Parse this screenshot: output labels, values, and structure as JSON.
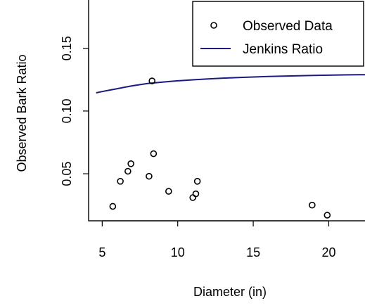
{
  "chart_data": {
    "type": "scatter",
    "title": "",
    "xlabel": "Diameter (in)",
    "ylabel": "Observed Bark Ratio",
    "xlim": [
      4.1,
      22.4
    ],
    "ylim": [
      0.0125,
      0.1885
    ],
    "x_ticks": [
      5,
      10,
      15,
      20
    ],
    "x_tick_labels": [
      "5",
      "10",
      "15",
      "20"
    ],
    "y_ticks": [
      0.05,
      0.1,
      0.15
    ],
    "y_tick_labels": [
      "0.05",
      "0.10",
      "0.15"
    ],
    "grid": false,
    "legend_position": "top-right",
    "series": [
      {
        "name": "Observed Data",
        "kind": "points",
        "marker": "open-circle",
        "color": "#000000",
        "points": [
          {
            "x": 5.7,
            "y": 0.024
          },
          {
            "x": 6.2,
            "y": 0.044
          },
          {
            "x": 6.7,
            "y": 0.052
          },
          {
            "x": 6.9,
            "y": 0.058
          },
          {
            "x": 8.1,
            "y": 0.048
          },
          {
            "x": 8.3,
            "y": 0.124
          },
          {
            "x": 8.4,
            "y": 0.066
          },
          {
            "x": 9.4,
            "y": 0.036
          },
          {
            "x": 11.0,
            "y": 0.031
          },
          {
            "x": 11.2,
            "y": 0.034
          },
          {
            "x": 11.3,
            "y": 0.044
          },
          {
            "x": 18.9,
            "y": 0.025
          },
          {
            "x": 19.9,
            "y": 0.017
          }
        ]
      },
      {
        "name": "Jenkins Ratio",
        "kind": "line",
        "color": "#1a1a80",
        "points": [
          {
            "x": 4.6,
            "y": 0.1145
          },
          {
            "x": 5.0,
            "y": 0.1155
          },
          {
            "x": 5.5,
            "y": 0.1167
          },
          {
            "x": 6.0,
            "y": 0.1178
          },
          {
            "x": 6.5,
            "y": 0.119
          },
          {
            "x": 7.0,
            "y": 0.1201
          },
          {
            "x": 7.5,
            "y": 0.121
          },
          {
            "x": 8.0,
            "y": 0.1219
          },
          {
            "x": 9.0,
            "y": 0.1231
          },
          {
            "x": 10.0,
            "y": 0.1241
          },
          {
            "x": 11.0,
            "y": 0.1249
          },
          {
            "x": 12.0,
            "y": 0.1256
          },
          {
            "x": 13.0,
            "y": 0.1262
          },
          {
            "x": 14.0,
            "y": 0.1267
          },
          {
            "x": 15.0,
            "y": 0.1271
          },
          {
            "x": 16.0,
            "y": 0.1275
          },
          {
            "x": 17.0,
            "y": 0.1278
          },
          {
            "x": 18.0,
            "y": 0.1281
          },
          {
            "x": 19.0,
            "y": 0.1284
          },
          {
            "x": 20.0,
            "y": 0.1286
          },
          {
            "x": 21.0,
            "y": 0.1288
          },
          {
            "x": 22.0,
            "y": 0.129
          },
          {
            "x": 22.4,
            "y": 0.129
          }
        ]
      }
    ]
  }
}
